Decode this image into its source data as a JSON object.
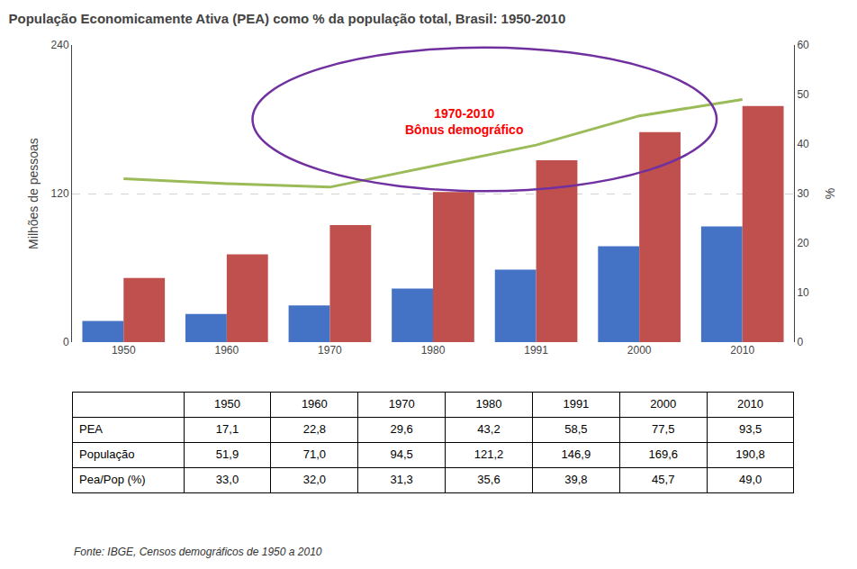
{
  "chart_data": {
    "type": "bar",
    "title": "População Economicamente Ativa (PEA) como % da população total, Brasil: 1950-2010",
    "categories": [
      "1950",
      "1960",
      "1970",
      "1980",
      "1991",
      "2000",
      "2010"
    ],
    "series": [
      {
        "name": "PEA",
        "type": "bar",
        "color": "#4472C4",
        "values": [
          17.1,
          22.8,
          29.6,
          43.2,
          58.5,
          77.5,
          93.5
        ],
        "value_labels": [
          "17,1",
          "22,8",
          "29,6",
          "43,2",
          "58,5",
          "77,5",
          "93,5"
        ]
      },
      {
        "name": "População",
        "type": "bar",
        "color": "#C0504D",
        "values": [
          51.9,
          71.0,
          94.5,
          121.2,
          146.9,
          169.6,
          190.8
        ],
        "value_labels": [
          "51,9",
          "71,0",
          "94,5",
          "121,2",
          "146,9",
          "169,6",
          "190,8"
        ]
      },
      {
        "name": "Pea/Pop (%)",
        "type": "line",
        "axis": "y2",
        "color": "#9BBB59",
        "values": [
          33.0,
          32.0,
          31.3,
          35.6,
          39.8,
          45.7,
          49.0
        ],
        "value_labels": [
          "33,0",
          "32,0",
          "31,3",
          "35,6",
          "39,8",
          "45,7",
          "49,0"
        ]
      }
    ],
    "ylabel": "Milhões de pessoas",
    "y2label": "%",
    "ylim": [
      0,
      240
    ],
    "yticks": [
      0,
      120,
      240
    ],
    "y2lim": [
      0,
      60
    ],
    "y2ticks": [
      0,
      10,
      20,
      30,
      40,
      50,
      60
    ],
    "grid": true,
    "annotations": [
      {
        "text": "1970-2010\nBônus demográfico",
        "color": "#FF0000",
        "outline_color": "#7030A0"
      }
    ],
    "source": "Fonte: IBGE, Censos demográficos de 1950 a 2010"
  }
}
